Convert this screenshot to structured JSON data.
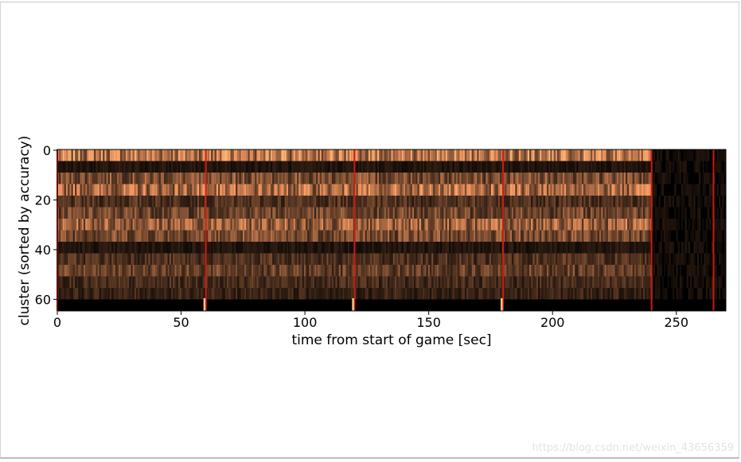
{
  "chart_data": {
    "type": "heatmap",
    "title": "",
    "xlabel": "time from start of game [sec]",
    "ylabel": "cluster (sorted by accuracy)",
    "xlim": [
      0,
      270
    ],
    "ylim": [
      65,
      0
    ],
    "x_ticks": [
      "0",
      "50",
      "100",
      "150",
      "200",
      "250"
    ],
    "x_tick_values": [
      0,
      50,
      100,
      150,
      200,
      250
    ],
    "y_ticks": [
      "0",
      "20",
      "40",
      "60"
    ],
    "y_tick_values": [
      0,
      20,
      40,
      60
    ],
    "colormap": "copper",
    "segment_boundaries_sec": [
      0,
      60,
      120,
      180,
      240,
      265
    ],
    "boundary_color": "#cc1a10",
    "n_clusters": 65,
    "notes_segments": [
      {
        "start": 0,
        "end": 60,
        "activity": "bright"
      },
      {
        "start": 60,
        "end": 120,
        "activity": "bright"
      },
      {
        "start": 120,
        "end": 180,
        "activity": "bright"
      },
      {
        "start": 180,
        "end": 240,
        "activity": "bright"
      },
      {
        "start": 240,
        "end": 265,
        "activity": "dark"
      },
      {
        "start": 265,
        "end": 270,
        "activity": "dark"
      }
    ],
    "row_brightness": [
      0.85,
      0.15,
      0.55,
      0.75,
      0.35,
      0.5,
      0.7,
      0.55,
      0.15,
      0.35,
      0.45,
      0.3,
      0.25,
      0.02
    ]
  },
  "watermark": "https://blog.csdn.net/weixin_43656359"
}
